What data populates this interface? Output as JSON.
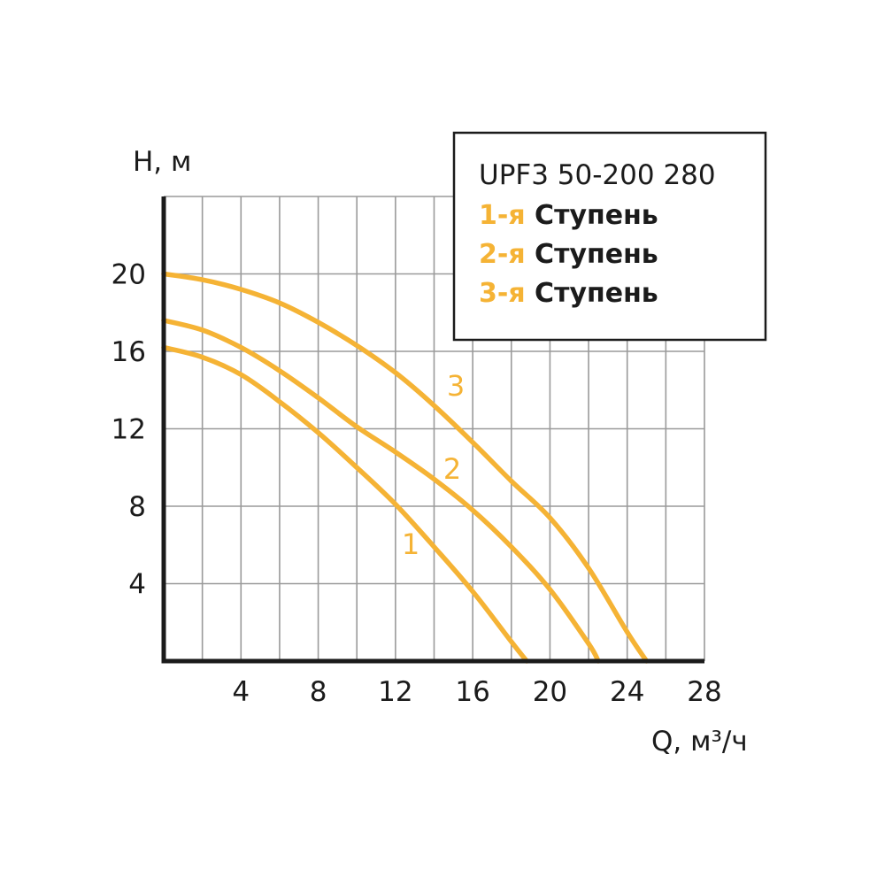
{
  "chart_data": {
    "type": "line",
    "title": "UPF3 50-200 280",
    "xlabel": "Q, м³/ч",
    "ylabel": "H, м",
    "xlim": [
      0,
      28
    ],
    "ylim": [
      0,
      24
    ],
    "x_ticks": [
      4,
      8,
      12,
      16,
      20,
      24,
      28
    ],
    "y_ticks": [
      4,
      8,
      12,
      16,
      20
    ],
    "grid": true,
    "legend_position": "top-right",
    "accent_color": "#f5b335",
    "series": [
      {
        "name": "1-я Ступень",
        "legend_number": "1-я",
        "legend_word": "Ступень",
        "curve_label": "1",
        "x": [
          0,
          2,
          4,
          6,
          8,
          10,
          12,
          14,
          16,
          18,
          18.8
        ],
        "y": [
          16.2,
          15.7,
          14.8,
          13.4,
          11.8,
          10.0,
          8.1,
          5.9,
          3.6,
          1.0,
          0
        ]
      },
      {
        "name": "2-я Ступень",
        "legend_number": "2-я",
        "legend_word": "Ступень",
        "curve_label": "2",
        "x": [
          0,
          2,
          4,
          6,
          8,
          10,
          12,
          14,
          16,
          18,
          20,
          22,
          22.5
        ],
        "y": [
          17.6,
          17.1,
          16.2,
          15.0,
          13.6,
          12.1,
          10.8,
          9.4,
          7.8,
          5.9,
          3.7,
          0.9,
          0
        ]
      },
      {
        "name": "3-я Ступень",
        "legend_number": "3-я",
        "legend_word": "Ступень",
        "curve_label": "3",
        "x": [
          0,
          2,
          4,
          6,
          8,
          10,
          12,
          14,
          16,
          18,
          20,
          22,
          24,
          25
        ],
        "y": [
          20.0,
          19.7,
          19.2,
          18.5,
          17.5,
          16.3,
          14.9,
          13.2,
          11.3,
          9.3,
          7.4,
          4.8,
          1.5,
          0
        ]
      }
    ]
  }
}
